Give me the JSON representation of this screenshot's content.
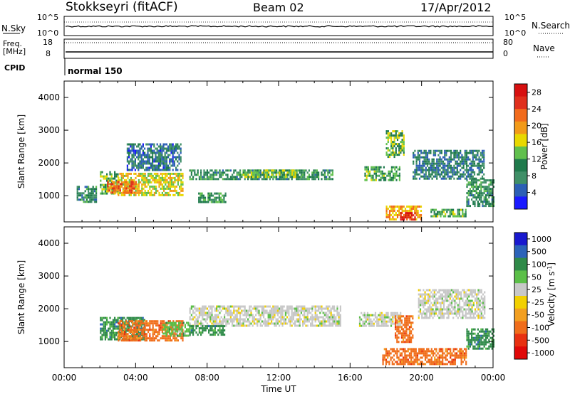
{
  "header": {
    "station": "Stokkseyri (fitACF)",
    "beam": "Beam 02",
    "date": "17/Apr/2012"
  },
  "top_panel": {
    "left_label": "N.Sky",
    "left_ticks": [
      "10^5",
      "10^0"
    ],
    "right_label": "N.Search",
    "right_ticks": [
      "10^5",
      "10^0"
    ]
  },
  "freq_panel": {
    "label_line1": "Freq.",
    "label_line2": "[MHz]",
    "left_ticks": [
      "18",
      "8"
    ],
    "right_label": "Nave",
    "right_ticks": [
      "80",
      "0"
    ]
  },
  "cpid": {
    "label": "CPID",
    "mode": "normal 150"
  },
  "colors": {
    "power": [
      "#1a1aff",
      "#2c5fb5",
      "#3f8f67",
      "#1f7a4c",
      "#61c04d",
      "#e8d800",
      "#f29a18",
      "#f26b1c",
      "#e02f1c",
      "#d71010"
    ],
    "velocity": [
      "#1919cf",
      "#2b63b9",
      "#2f8a49",
      "#5bbf48",
      "#c8c8c8",
      "#f2d000",
      "#f29f20",
      "#f06d1a",
      "#e83010",
      "#e00808"
    ]
  },
  "chart_data": [
    {
      "type": "heatmap",
      "name": "power",
      "ylabel": "Slant Range [km]",
      "xlabel": "",
      "xlim": [
        0,
        24
      ],
      "ylim": [
        200,
        4500
      ],
      "yticks": [
        "1000",
        "2000",
        "3000",
        "4000"
      ],
      "colorbar": {
        "label": "Power [dB]",
        "ticks": [
          "4",
          "8",
          "12",
          "16",
          "20",
          "24",
          "28"
        ],
        "range": [
          0,
          30
        ]
      },
      "blobs": [
        {
          "x": [
            2.0,
            3.0
          ],
          "y": [
            1050,
            1750
          ],
          "v": 12
        },
        {
          "x": [
            3.0,
            6.6
          ],
          "y": [
            1000,
            1700
          ],
          "v": 15
        },
        {
          "x": [
            2.4,
            4.0
          ],
          "y": [
            1100,
            1450
          ],
          "v": 21
        },
        {
          "x": [
            7.0,
            15.0
          ],
          "y": [
            1500,
            1800
          ],
          "v": 8
        },
        {
          "x": [
            10.0,
            13.0
          ],
          "y": [
            1550,
            1800
          ],
          "v": 12
        },
        {
          "x": [
            16.8,
            18.8
          ],
          "y": [
            1500,
            1900
          ],
          "v": 10
        },
        {
          "x": [
            0.7,
            1.8
          ],
          "y": [
            800,
            1300
          ],
          "v": 7
        },
        {
          "x": [
            7.5,
            9.0
          ],
          "y": [
            800,
            1100
          ],
          "v": 9
        },
        {
          "x": [
            18.0,
            20.0
          ],
          "y": [
            300,
            700
          ],
          "v": 18
        },
        {
          "x": [
            18.8,
            19.6
          ],
          "y": [
            250,
            500
          ],
          "v": 27
        },
        {
          "x": [
            20.5,
            22.5
          ],
          "y": [
            350,
            600
          ],
          "v": 10
        },
        {
          "x": [
            22.5,
            24.0
          ],
          "y": [
            700,
            1500
          ],
          "v": 8
        },
        {
          "x": [
            19.5,
            23.5
          ],
          "y": [
            1500,
            2400
          ],
          "v": 6
        },
        {
          "x": [
            3.5,
            6.5
          ],
          "y": [
            1800,
            2600
          ],
          "v": 5
        },
        {
          "x": [
            18.0,
            19.0
          ],
          "y": [
            2200,
            3000
          ],
          "v": 12
        }
      ]
    },
    {
      "type": "heatmap",
      "name": "velocity",
      "ylabel": "Slant Range [km]",
      "xlabel": "Time UT",
      "xlim": [
        0,
        24
      ],
      "ylim": [
        200,
        4500
      ],
      "xticks": [
        "00:00",
        "04:00",
        "08:00",
        "12:00",
        "16:00",
        "20:00",
        "00:00"
      ],
      "yticks": [
        "1000",
        "2000",
        "3000",
        "4000"
      ],
      "colorbar": {
        "label": "Velocity [m s^-1]",
        "ticks": [
          "1000",
          "500",
          "100",
          "50",
          "25",
          "-25",
          "-50",
          "-100",
          "-500",
          "-1000"
        ]
      },
      "blobs": [
        {
          "x": [
            2.0,
            4.5
          ],
          "y": [
            1050,
            1750
          ],
          "v": "100"
        },
        {
          "x": [
            3.0,
            6.6
          ],
          "y": [
            1000,
            1650
          ],
          "v": "-100"
        },
        {
          "x": [
            5.5,
            7.0
          ],
          "y": [
            1200,
            1600
          ],
          "v": "50"
        },
        {
          "x": [
            7.0,
            15.5
          ],
          "y": [
            1450,
            2100
          ],
          "v": "25"
        },
        {
          "x": [
            7.0,
            9.0
          ],
          "y": [
            1200,
            1500
          ],
          "v": "100"
        },
        {
          "x": [
            16.5,
            18.8
          ],
          "y": [
            1500,
            1900
          ],
          "v": "25"
        },
        {
          "x": [
            17.8,
            22.5
          ],
          "y": [
            300,
            800
          ],
          "v": "-100"
        },
        {
          "x": [
            18.5,
            19.5
          ],
          "y": [
            1000,
            1800
          ],
          "v": "-100"
        },
        {
          "x": [
            19.8,
            23.5
          ],
          "y": [
            1700,
            2600
          ],
          "v": "25"
        },
        {
          "x": [
            22.5,
            24.0
          ],
          "y": [
            800,
            1400
          ],
          "v": "100"
        }
      ]
    }
  ]
}
